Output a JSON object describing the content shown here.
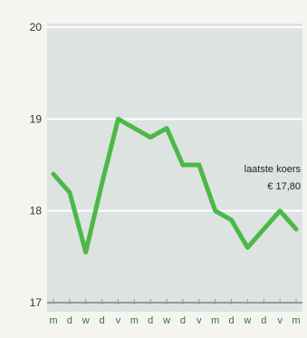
{
  "chart_data": {
    "type": "line",
    "categories": [
      "m",
      "d",
      "w",
      "d",
      "v",
      "m",
      "d",
      "w",
      "d",
      "v",
      "m",
      "d",
      "w",
      "d",
      "v",
      "m"
    ],
    "series": [
      {
        "values": [
          18.4,
          18.2,
          17.55,
          18.3,
          19.0,
          18.9,
          18.8,
          18.9,
          18.5,
          18.5,
          18.0,
          17.9,
          17.6,
          17.8,
          18.0,
          17.8
        ]
      }
    ],
    "ylim": [
      17,
      20
    ],
    "yticks": [
      "17",
      "18",
      "19",
      "20"
    ],
    "grid": true,
    "annotation": {
      "line1": "laatste koers",
      "line2": "€ 17,80"
    },
    "colors": {
      "line": "#4cb848",
      "plot_bg": "#dde3e1",
      "page_bg": "#f4f4f1",
      "grid": "#ffffff",
      "axis": "#999999"
    }
  }
}
